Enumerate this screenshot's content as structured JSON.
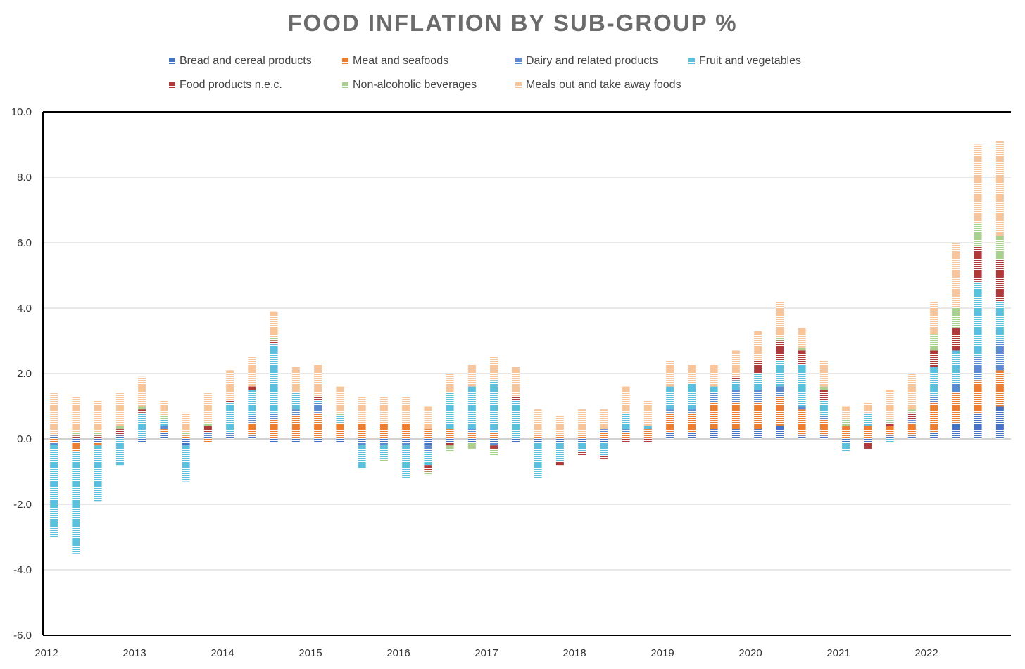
{
  "title": "FOOD INFLATION BY SUB-GROUP %",
  "chart_data": {
    "type": "bar",
    "stacked": true,
    "title": "FOOD INFLATION BY SUB-GROUP %",
    "xlabel": "",
    "ylabel": "",
    "ylim": [
      -6,
      10
    ],
    "yticks": [
      "10.0",
      "8.0",
      "6.0",
      "4.0",
      "2.0",
      "0.0",
      "-2.0",
      "-4.0",
      "-6.0"
    ],
    "ytick_values": [
      10,
      8,
      6,
      4,
      2,
      0,
      -2,
      -4,
      -6
    ],
    "xticks": [
      "2012",
      "2013",
      "2014",
      "2015",
      "2016",
      "2017",
      "2018",
      "2019",
      "2020",
      "2021",
      "2022"
    ],
    "grid": true,
    "legend_position": "top",
    "periods": [
      "2012 Q1",
      "2012 Q2",
      "2012 Q3",
      "2012 Q4",
      "2013 Q1",
      "2013 Q2",
      "2013 Q3",
      "2013 Q4",
      "2014 Q1",
      "2014 Q2",
      "2014 Q3",
      "2014 Q4",
      "2015 Q1",
      "2015 Q2",
      "2015 Q3",
      "2015 Q4",
      "2016 Q1",
      "2016 Q2",
      "2016 Q3",
      "2016 Q4",
      "2017 Q1",
      "2017 Q2",
      "2017 Q3",
      "2017 Q4",
      "2018 Q1",
      "2018 Q2",
      "2018 Q3",
      "2018 Q4",
      "2019 Q1",
      "2019 Q2",
      "2019 Q3",
      "2019 Q4",
      "2020 Q1",
      "2020 Q2",
      "2020 Q3",
      "2020 Q4",
      "2021 Q1",
      "2021 Q2",
      "2021 Q3",
      "2021 Q4",
      "2022 Q1",
      "2022 Q2",
      "2022 Q3",
      "2022 Q4"
    ],
    "series": [
      {
        "name": "Bread and cereal products",
        "color": "#4472c4",
        "values": [
          0.1,
          -0.1,
          -0.1,
          0.1,
          -0.1,
          0.2,
          -0.2,
          0.1,
          0.1,
          0.1,
          -0.1,
          -0.1,
          -0.1,
          -0.1,
          -0.1,
          -0.1,
          -0.1,
          -0.2,
          -0.1,
          -0.1,
          -0.1,
          -0.1,
          -0.1,
          -0.1,
          -0.1,
          -0.1,
          0.0,
          0.0,
          0.2,
          0.2,
          0.3,
          0.3,
          0.3,
          0.4,
          0.1,
          0.1,
          -0.1,
          -0.1,
          0.1,
          0.1,
          0.2,
          0.5,
          0.8,
          1.0
        ]
      },
      {
        "name": "Meat and seafoods",
        "color": "#ed7d31",
        "values": [
          -0.1,
          -0.3,
          -0.1,
          0.0,
          0.0,
          0.1,
          0.1,
          -0.1,
          0.0,
          0.4,
          0.6,
          0.7,
          0.8,
          0.5,
          0.5,
          0.5,
          0.5,
          0.3,
          0.3,
          0.2,
          0.2,
          0.0,
          0.1,
          0.1,
          0.1,
          0.2,
          0.2,
          0.3,
          0.6,
          0.6,
          0.8,
          0.8,
          0.8,
          0.9,
          0.8,
          0.5,
          0.4,
          0.4,
          0.3,
          0.4,
          0.9,
          0.9,
          1.0,
          1.1
        ]
      },
      {
        "name": "Dairy and related products",
        "color": "#5b8bd0",
        "values": [
          -0.1,
          0.0,
          0.0,
          0.0,
          0.0,
          0.1,
          0.0,
          0.1,
          0.1,
          0.2,
          0.2,
          0.2,
          0.3,
          0.0,
          -0.1,
          -0.1,
          -0.1,
          -0.2,
          0.0,
          0.1,
          -0.1,
          0.0,
          0.0,
          0.0,
          0.0,
          0.1,
          0.1,
          0.0,
          0.1,
          0.1,
          0.3,
          0.4,
          0.4,
          0.3,
          0.1,
          0.1,
          0.0,
          0.0,
          0.0,
          0.1,
          0.2,
          0.3,
          0.7,
          0.9
        ]
      },
      {
        "name": "Fruit and vegetables",
        "color": "#5bc0de",
        "values": [
          -2.8,
          -3.1,
          -1.7,
          -0.8,
          0.8,
          0.2,
          -1.1,
          0.0,
          0.9,
          0.8,
          2.1,
          0.5,
          0.1,
          0.2,
          -0.7,
          -0.4,
          -1.0,
          -0.4,
          1.1,
          1.3,
          1.6,
          1.2,
          -1.1,
          -0.6,
          -0.3,
          -0.4,
          0.5,
          0.1,
          0.7,
          0.8,
          0.2,
          0.3,
          0.5,
          0.8,
          1.3,
          0.5,
          -0.3,
          0.4,
          -0.1,
          0.0,
          0.9,
          1.0,
          2.3,
          1.2
        ]
      },
      {
        "name": "Food products n.e.c.",
        "color": "#b03a3a",
        "values": [
          0.0,
          0.1,
          0.1,
          0.2,
          0.1,
          0.0,
          0.0,
          0.2,
          0.1,
          0.1,
          0.1,
          0.0,
          0.1,
          0.0,
          0.0,
          0.0,
          0.0,
          -0.2,
          -0.1,
          0.0,
          -0.1,
          0.1,
          0.0,
          -0.1,
          -0.1,
          -0.1,
          -0.1,
          -0.1,
          0.0,
          0.0,
          0.0,
          0.1,
          0.4,
          0.6,
          0.4,
          0.3,
          0.0,
          -0.2,
          0.1,
          0.2,
          0.5,
          0.7,
          1.1,
          1.3
        ]
      },
      {
        "name": "Non-alcoholic beverages",
        "color": "#a9d18e",
        "values": [
          0.0,
          0.1,
          0.1,
          0.1,
          0.1,
          0.1,
          0.1,
          0.1,
          0.0,
          0.0,
          0.1,
          0.0,
          0.0,
          0.1,
          0.0,
          -0.1,
          0.0,
          -0.1,
          -0.2,
          -0.2,
          -0.2,
          0.0,
          0.0,
          0.0,
          0.0,
          0.0,
          0.0,
          0.0,
          0.0,
          0.0,
          0.0,
          0.0,
          0.0,
          0.1,
          0.1,
          0.1,
          0.2,
          0.0,
          0.1,
          0.1,
          0.5,
          0.6,
          0.7,
          0.7
        ]
      },
      {
        "name": "Meals out and take away foods",
        "color": "#f8c49a",
        "values": [
          1.3,
          1.1,
          1.0,
          1.0,
          0.9,
          0.5,
          0.6,
          0.9,
          0.9,
          0.9,
          0.8,
          0.8,
          1.0,
          0.8,
          0.8,
          0.8,
          0.8,
          0.7,
          0.6,
          0.7,
          0.7,
          0.9,
          0.8,
          0.6,
          0.8,
          0.6,
          0.8,
          0.8,
          0.8,
          0.6,
          0.7,
          0.8,
          0.9,
          1.1,
          0.6,
          0.8,
          0.4,
          0.3,
          0.9,
          1.1,
          1.0,
          2.0,
          2.4,
          2.9
        ]
      }
    ]
  }
}
